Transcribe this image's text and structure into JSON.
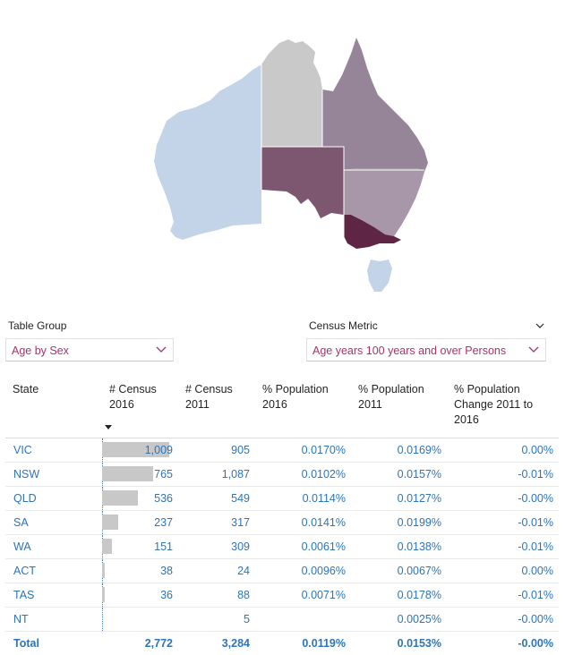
{
  "colors": {
    "accent": "#a3346e",
    "link": "#2e75b6",
    "wa": "#c4d4e8",
    "nt": "#c9c9c9",
    "qld": "#968498",
    "sa": "#7d5670",
    "nsw": "#a797a8",
    "vic": "#5f2544",
    "tas": "#c4d4e8",
    "bar": "#c8c8c8"
  },
  "filters": {
    "table_group": {
      "label": "Table Group",
      "value": "Age by Sex"
    },
    "census_metric": {
      "label": "Census Metric",
      "value": "Age years 100 years and over Persons"
    }
  },
  "table": {
    "headers": {
      "state": "State",
      "c2016_line1": "# Census",
      "c2016_line2": "2016",
      "c2011_line1": "# Census",
      "c2011_line2": "2011",
      "p2016_line1": "% Population",
      "p2016_line2": "2016",
      "p2011_line1": "% Population",
      "p2011_line2": "2011",
      "chg_line1": "% Population",
      "chg_line2": "Change 2011 to",
      "chg_line3": "2016"
    },
    "rows": [
      {
        "state": "VIC",
        "c2016": "1,009",
        "c2011": "905",
        "p2016": "0.0170%",
        "p2011": "0.0169%",
        "chg": "0.00%",
        "bar": 1.0
      },
      {
        "state": "NSW",
        "c2016": "765",
        "c2011": "1,087",
        "p2016": "0.0102%",
        "p2011": "0.0157%",
        "chg": "-0.01%",
        "bar": 0.758
      },
      {
        "state": "QLD",
        "c2016": "536",
        "c2011": "549",
        "p2016": "0.0114%",
        "p2011": "0.0127%",
        "chg": "-0.00%",
        "bar": 0.531
      },
      {
        "state": "SA",
        "c2016": "237",
        "c2011": "317",
        "p2016": "0.0141%",
        "p2011": "0.0199%",
        "chg": "-0.01%",
        "bar": 0.235
      },
      {
        "state": "WA",
        "c2016": "151",
        "c2011": "309",
        "p2016": "0.0061%",
        "p2011": "0.0138%",
        "chg": "-0.01%",
        "bar": 0.15
      },
      {
        "state": "ACT",
        "c2016": "38",
        "c2011": "24",
        "p2016": "0.0096%",
        "p2011": "0.0067%",
        "chg": "0.00%",
        "bar": 0.038
      },
      {
        "state": "TAS",
        "c2016": "36",
        "c2011": "88",
        "p2016": "0.0071%",
        "p2011": "0.0178%",
        "chg": "-0.01%",
        "bar": 0.036
      },
      {
        "state": "NT",
        "c2016": "",
        "c2011": "5",
        "p2016": "",
        "p2011": "0.0025%",
        "chg": "-0.00%",
        "bar": 0
      }
    ],
    "total": {
      "state": "Total",
      "c2016": "2,772",
      "c2011": "3,284",
      "p2016": "0.0119%",
      "p2011": "0.0153%",
      "chg": "-0.00%"
    }
  }
}
